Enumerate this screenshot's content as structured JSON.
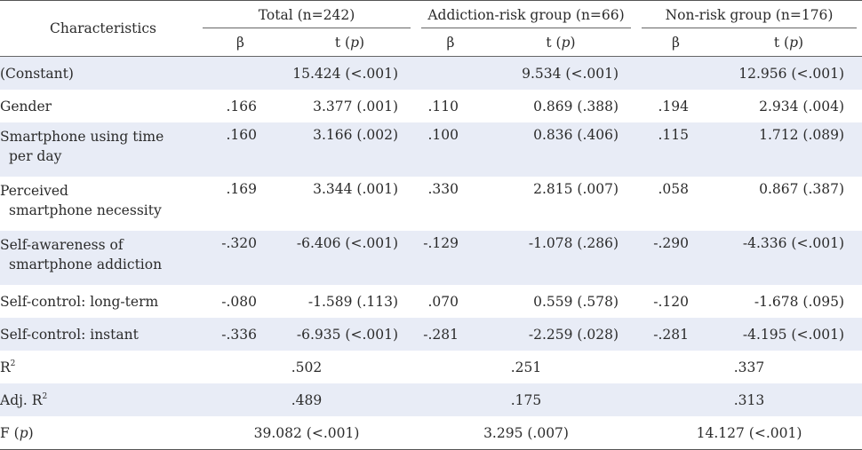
{
  "header": {
    "characteristics": "Characteristics",
    "groups": [
      "Total (n=242)",
      "Addiction-risk group (n=66)",
      "Non-risk group (n=176)"
    ],
    "beta": "β",
    "t_prefix": "t (",
    "p": "p",
    "t_suffix": ")"
  },
  "rows": [
    {
      "label": "(Constant)",
      "label2": "",
      "cells": [
        "",
        "15.424 (<.001)",
        "",
        "9.534 (<.001)",
        "",
        "12.956 (<.001)"
      ]
    },
    {
      "label": "Gender",
      "label2": "",
      "cells": [
        ".166",
        "3.377 (.001)",
        ".110",
        "0.869 (.388)",
        ".194",
        "2.934 (.004)"
      ]
    },
    {
      "label": "Smartphone using time",
      "label2": "per day",
      "cells": [
        ".160",
        "3.166 (.002)",
        ".100",
        "0.836 (.406)",
        ".115",
        "1.712 (.089)"
      ]
    },
    {
      "label": "Perceived",
      "label2": "smartphone necessity",
      "cells": [
        ".169",
        "3.344 (.001)",
        ".330",
        "2.815 (.007)",
        ".058",
        "0.867 (.387)"
      ]
    },
    {
      "label": "Self-awareness of",
      "label2": "smartphone addiction",
      "cells": [
        "-.320",
        "-6.406 (<.001)",
        "-.129",
        "-1.078 (.286)",
        "-.290",
        "-4.336 (<.001)"
      ]
    },
    {
      "label": "Self-control: long-term",
      "label2": "",
      "cells": [
        "-.080",
        "-1.589 (.113)",
        ".070",
        "0.559 (.578)",
        "-.120",
        "-1.678 (.095)"
      ]
    },
    {
      "label": "Self-control: instant",
      "label2": "",
      "cells": [
        "-.336",
        "-6.935 (<.001)",
        "-.281",
        "-2.259 (.028)",
        "-.281",
        "-4.195 (<.001)"
      ]
    }
  ],
  "summary": {
    "r2": {
      "label": "R",
      "sup": "2",
      "values": [
        ".502",
        ".251",
        ".337"
      ]
    },
    "adjr2": {
      "label": "Adj. R",
      "sup": "2",
      "values": [
        ".489",
        ".175",
        ".313"
      ]
    },
    "f": {
      "label_prefix": "F (",
      "label_p": "p",
      "label_suffix": ")",
      "values": [
        "39.082 (<.001)",
        "3.295 (.007)",
        "14.127 (<.001)"
      ]
    }
  }
}
